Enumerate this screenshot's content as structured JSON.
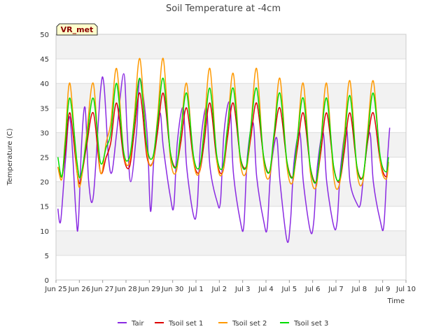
{
  "chart_data": {
    "type": "line",
    "title": "Soil Temperature at -4cm",
    "xlabel": "Time",
    "ylabel": "Temperature (C)",
    "badge": "VR_met",
    "ylim": [
      0,
      50
    ],
    "yticks": [
      0,
      5,
      10,
      15,
      20,
      25,
      30,
      35,
      40,
      45,
      50
    ],
    "xlim": [
      0,
      15
    ],
    "xticks": [
      {
        "v": 0,
        "label": "Jun 25"
      },
      {
        "v": 1,
        "label": "Jun 26"
      },
      {
        "v": 2,
        "label": "Jun 27"
      },
      {
        "v": 3,
        "label": "Jun 28"
      },
      {
        "v": 4,
        "label": "Jun 29"
      },
      {
        "v": 5,
        "label": "Jun 30"
      },
      {
        "v": 6,
        "label": "Jul 1"
      },
      {
        "v": 7,
        "label": "Jul 2"
      },
      {
        "v": 8,
        "label": "Jul 3"
      },
      {
        "v": 9,
        "label": "Jul 4"
      },
      {
        "v": 10,
        "label": "Jul 5"
      },
      {
        "v": 11,
        "label": "Jul 6"
      },
      {
        "v": 12,
        "label": "Jul 7"
      },
      {
        "v": 13,
        "label": "Jul 8"
      },
      {
        "v": 14,
        "label": "Jul 9"
      },
      {
        "v": 15,
        "label": "Jul 10"
      }
    ],
    "grid": true,
    "legend_position": "bottom",
    "series": [
      {
        "name": "Tair",
        "color": "#8a2be2",
        "x": [
          0.08,
          0.2,
          0.4,
          0.6,
          0.85,
          0.95,
          1.1,
          1.25,
          1.4,
          1.6,
          1.9,
          2.05,
          2.25,
          2.4,
          2.6,
          2.9,
          3.05,
          3.2,
          3.45,
          3.6,
          3.9,
          4.05,
          4.2,
          4.45,
          4.6,
          4.9,
          5.05,
          5.2,
          5.45,
          5.6,
          5.9,
          6.05,
          6.2,
          6.45,
          6.6,
          6.9,
          7.05,
          7.2,
          7.45,
          7.6,
          7.9,
          8.05,
          8.2,
          8.45,
          8.6,
          8.9,
          9.05,
          9.2,
          9.45,
          9.6,
          9.9,
          10.05,
          10.2,
          10.45,
          10.6,
          10.9,
          11.05,
          11.2,
          11.45,
          11.6,
          11.9,
          12.05,
          12.2,
          12.45,
          12.6,
          12.9,
          13.05,
          13.2,
          13.45,
          13.6,
          13.9,
          14.05,
          14.2,
          14.3
        ],
        "y": [
          14.5,
          12,
          24,
          33,
          14,
          11,
          28,
          35,
          20,
          17,
          38,
          40,
          25,
          22,
          30,
          42,
          30,
          20,
          30,
          41,
          30,
          14,
          25,
          34,
          27,
          17,
          15,
          28,
          35,
          23,
          13,
          15,
          28,
          35,
          23,
          16,
          16,
          30,
          36,
          22,
          12,
          11,
          25,
          32,
          21,
          12,
          10.5,
          22,
          29,
          20,
          8,
          12,
          24,
          30,
          20,
          10,
          12,
          23,
          30,
          20,
          11,
          12,
          23,
          31,
          20,
          15.5,
          15.5,
          22,
          30,
          20,
          12,
          11,
          24,
          31
        ]
      },
      {
        "name": "Tsoil set 1",
        "color": "#dd0000",
        "x": [
          0.08,
          0.25,
          0.4,
          0.6,
          0.9,
          1.05,
          1.3,
          1.6,
          1.9,
          2.15,
          2.35,
          2.6,
          2.9,
          3.15,
          3.35,
          3.6,
          3.9,
          4.15,
          4.35,
          4.6,
          4.9,
          5.15,
          5.35,
          5.6,
          5.9,
          6.15,
          6.35,
          6.6,
          6.9,
          7.15,
          7.35,
          7.6,
          7.9,
          8.15,
          8.35,
          8.6,
          8.9,
          9.15,
          9.35,
          9.6,
          9.9,
          10.15,
          10.35,
          10.6,
          10.9,
          11.15,
          11.35,
          11.6,
          11.9,
          12.15,
          12.35,
          12.6,
          12.9,
          13.15,
          13.35,
          13.6,
          13.9,
          14.15,
          14.25
        ],
        "y": [
          23,
          21,
          26,
          34,
          22,
          20,
          27,
          34,
          22,
          25,
          28,
          36,
          25,
          23,
          30,
          38,
          25,
          24,
          30,
          38,
          26,
          23,
          28,
          35,
          24,
          22,
          28,
          36,
          24,
          22,
          29,
          36,
          25,
          23,
          29,
          36,
          25,
          22,
          29,
          35,
          24,
          21,
          27,
          34,
          23,
          20,
          26,
          34,
          23,
          20,
          26,
          34,
          23,
          21,
          28,
          34,
          24,
          21,
          24
        ]
      },
      {
        "name": "Tsoil set 2",
        "color": "#ff9900",
        "x": [
          0.08,
          0.25,
          0.4,
          0.6,
          0.9,
          1.05,
          1.3,
          1.6,
          1.9,
          2.15,
          2.35,
          2.6,
          2.9,
          3.15,
          3.35,
          3.6,
          3.9,
          4.15,
          4.35,
          4.6,
          4.9,
          5.15,
          5.35,
          5.6,
          5.9,
          6.15,
          6.35,
          6.6,
          6.9,
          7.15,
          7.35,
          7.6,
          7.9,
          8.15,
          8.35,
          8.6,
          8.9,
          9.15,
          9.35,
          9.6,
          9.9,
          10.15,
          10.35,
          10.6,
          10.9,
          11.15,
          11.35,
          11.6,
          11.9,
          12.15,
          12.35,
          12.6,
          12.9,
          13.15,
          13.35,
          13.6,
          13.9,
          14.15,
          14.25
        ],
        "y": [
          23,
          20.5,
          29,
          40,
          22,
          19.5,
          29,
          40,
          22,
          28,
          32,
          43,
          26,
          24,
          33,
          45,
          26,
          24,
          33,
          45,
          25,
          22,
          30,
          40,
          24,
          22,
          31,
          43,
          24,
          22,
          31,
          42,
          24,
          22,
          31,
          43,
          24,
          21,
          30,
          41,
          23,
          20,
          29,
          40,
          22,
          19,
          28,
          40,
          21,
          19.5,
          29,
          40.5,
          22,
          20,
          30,
          40.5,
          24,
          20.5,
          24
        ]
      },
      {
        "name": "Tsoil set 3",
        "color": "#00dd00",
        "x": [
          0.08,
          0.25,
          0.4,
          0.6,
          0.9,
          1.05,
          1.3,
          1.6,
          1.9,
          2.15,
          2.35,
          2.6,
          2.9,
          3.15,
          3.35,
          3.6,
          3.9,
          4.15,
          4.35,
          4.6,
          4.9,
          5.15,
          5.35,
          5.6,
          5.9,
          6.15,
          6.35,
          6.6,
          6.9,
          7.15,
          7.35,
          7.6,
          7.9,
          8.15,
          8.35,
          8.6,
          8.9,
          9.15,
          9.35,
          9.6,
          9.9,
          10.15,
          10.35,
          10.6,
          10.9,
          11.15,
          11.35,
          11.6,
          11.9,
          12.15,
          12.35,
          12.6,
          12.9,
          13.15,
          13.35,
          13.6,
          13.9,
          14.15,
          14.25
        ],
        "y": [
          25,
          21,
          28,
          37,
          24,
          21,
          28,
          37,
          24,
          27,
          30,
          40,
          26,
          25,
          32,
          41,
          27,
          25,
          32,
          41,
          26,
          23,
          30,
          38,
          25,
          23,
          30,
          39,
          25,
          23,
          31,
          39,
          25,
          23,
          31,
          39,
          25,
          22,
          30,
          38,
          24,
          21,
          29,
          37,
          23,
          20,
          28,
          37,
          23,
          20.5,
          28,
          37.5,
          23,
          21,
          29,
          38,
          25,
          22,
          25
        ]
      }
    ]
  }
}
